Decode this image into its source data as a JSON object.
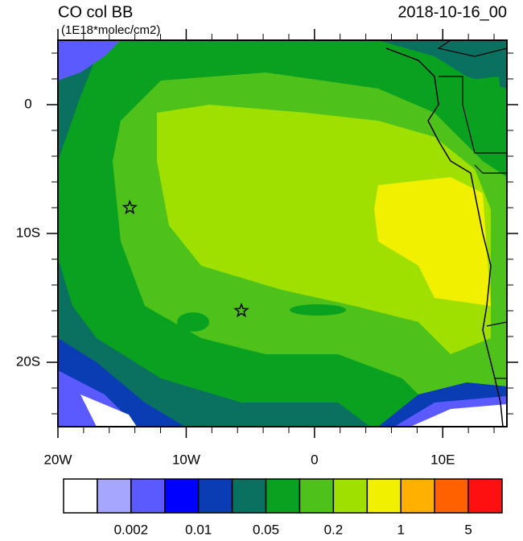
{
  "chart_data": {
    "type": "map",
    "title": "CO col BB",
    "subtitle": "(1E18*molec/cm2)",
    "date": "2018-10-16_00",
    "xlim": [
      -20,
      15
    ],
    "ylim": [
      -25,
      5
    ],
    "xticks": [
      {
        "value": -20,
        "label": "20W"
      },
      {
        "value": -10,
        "label": "10W"
      },
      0,
      {
        "value": 10,
        "label": "10E"
      }
    ],
    "yticks": [
      0,
      {
        "value": -10,
        "label": "10S"
      },
      {
        "value": -20,
        "label": "20S"
      }
    ],
    "xminor": [
      -18,
      -16,
      -14,
      -12,
      -8,
      -6,
      -4,
      -2,
      2,
      4,
      6,
      8,
      12,
      14
    ],
    "yminor": [
      4,
      2,
      -2,
      -4,
      -6,
      -8,
      -12,
      -14,
      -16,
      -18,
      -22,
      -24
    ],
    "markers": [
      {
        "lon": -14.4,
        "lat": -8
      },
      {
        "lon": -5.7,
        "lat": -16
      }
    ],
    "colorbar": {
      "colors": [
        "#ffffff",
        "#a6a6ff",
        "#5a5aff",
        "#0000ff",
        "#0a3cb4",
        "#0a7060",
        "#0aa020",
        "#4ec21a",
        "#a0e000",
        "#f0f000",
        "#ffb000",
        "#ff6000",
        "#ff1010"
      ],
      "labels": [
        "0.002",
        "0.01",
        "0.05",
        "0.2",
        "1",
        "5"
      ]
    }
  }
}
